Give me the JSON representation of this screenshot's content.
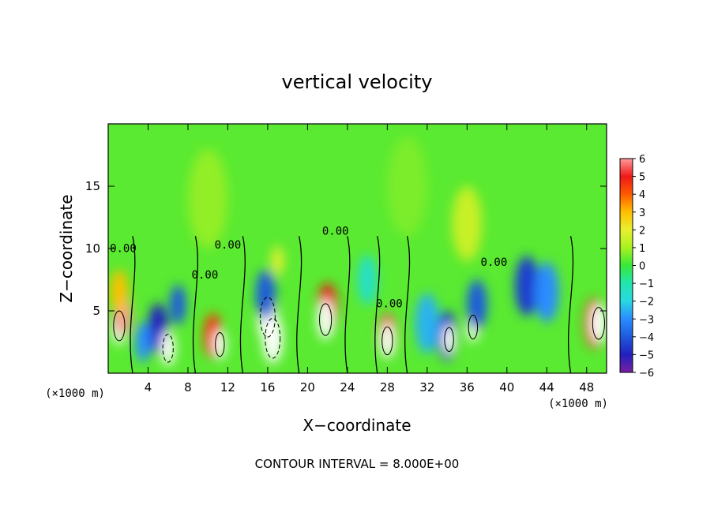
{
  "chart_data": {
    "type": "heatmap",
    "title": "vertical velocity",
    "xlabel": "X−coordinate",
    "ylabel": "Z−coordinate",
    "x_unit_left": "(×1000 m)",
    "x_unit_right": "(×1000 m)",
    "footer": "CONTOUR INTERVAL = 8.000E+00",
    "xlim": [
      0,
      50
    ],
    "ylim": [
      0,
      20
    ],
    "xticks": [
      4,
      8,
      12,
      16,
      20,
      24,
      28,
      32,
      36,
      40,
      44,
      48
    ],
    "xtick_labels": [
      "4",
      "8",
      "12",
      "16",
      "20",
      "24",
      "28",
      "32",
      "36",
      "40",
      "44",
      "48"
    ],
    "yticks": [
      5,
      10,
      15
    ],
    "ytick_labels": [
      "5",
      "10",
      "15"
    ],
    "colorbar": {
      "range": [
        -6,
        6
      ],
      "ticks": [
        6,
        5,
        4,
        3,
        2,
        1,
        0,
        -1,
        -2,
        -3,
        -4,
        -5,
        -6
      ],
      "tick_labels": [
        "6",
        "5",
        "4",
        "3",
        "2",
        "1",
        "0",
        "−1",
        "−2",
        "−3",
        "−4",
        "−5",
        "−6"
      ]
    },
    "contour_labels": [
      {
        "text": "0.00",
        "x": 1.5,
        "z": 9.7
      },
      {
        "text": "0.00",
        "x": 9.7,
        "z": 7.6
      },
      {
        "text": "0.00",
        "x": 12.0,
        "z": 10.0
      },
      {
        "text": "0.00",
        "x": 22.8,
        "z": 11.1
      },
      {
        "text": "0.00",
        "x": 28.2,
        "z": 5.3
      },
      {
        "text": "0.00",
        "x": 38.7,
        "z": 8.6
      }
    ],
    "cells": [
      {
        "x": 1.1,
        "z": 3.8,
        "w": 0.75,
        "value": 8
      },
      {
        "x": 1.4,
        "z": 4.8,
        "w": 0.9,
        "value": 6
      },
      {
        "x": 1.1,
        "z": 6.5,
        "w": 0.9,
        "value": 3
      },
      {
        "x": 5.0,
        "z": 3.6,
        "w": 1.0,
        "value": -5
      },
      {
        "x": 6.0,
        "z": 2.0,
        "w": 0.7,
        "value": -8
      },
      {
        "x": 7.0,
        "z": 5.5,
        "w": 0.8,
        "value": -4
      },
      {
        "x": 3.5,
        "z": 2.5,
        "w": 0.8,
        "value": -3
      },
      {
        "x": 10.5,
        "z": 3.0,
        "w": 0.9,
        "value": 4.5
      },
      {
        "x": 11.2,
        "z": 2.3,
        "w": 0.6,
        "value": 8
      },
      {
        "x": 16.0,
        "z": 4.5,
        "w": 1.0,
        "value": -8
      },
      {
        "x": 16.5,
        "z": 2.8,
        "w": 1.0,
        "value": -8
      },
      {
        "x": 15.8,
        "z": 6.3,
        "w": 1.0,
        "value": -4
      },
      {
        "x": 17.0,
        "z": 9.0,
        "w": 0.6,
        "value": 2
      },
      {
        "x": 22.0,
        "z": 5.2,
        "w": 1.0,
        "value": 5
      },
      {
        "x": 21.8,
        "z": 4.3,
        "w": 0.8,
        "value": 8
      },
      {
        "x": 28.0,
        "z": 3.0,
        "w": 0.9,
        "value": 5.5
      },
      {
        "x": 28.0,
        "z": 2.6,
        "w": 0.7,
        "value": 8
      },
      {
        "x": 26.0,
        "z": 7.5,
        "w": 1.0,
        "value": -1.5
      },
      {
        "x": 34.0,
        "z": 3.0,
        "w": 1.0,
        "value": -4.5
      },
      {
        "x": 34.2,
        "z": 2.7,
        "w": 0.6,
        "value": 8
      },
      {
        "x": 36.6,
        "z": 3.7,
        "w": 0.6,
        "value": 8
      },
      {
        "x": 37.0,
        "z": 5.5,
        "w": 1.0,
        "value": -4
      },
      {
        "x": 32.0,
        "z": 4.0,
        "w": 1.2,
        "value": -2.5
      },
      {
        "x": 42.0,
        "z": 7.0,
        "w": 1.2,
        "value": -4.5
      },
      {
        "x": 44.0,
        "z": 6.5,
        "w": 1.2,
        "value": -3
      },
      {
        "x": 48.8,
        "z": 4.0,
        "w": 1.0,
        "value": 5
      },
      {
        "x": 49.2,
        "z": 4.0,
        "w": 0.8,
        "value": 8
      },
      {
        "x": 36.0,
        "z": 12.0,
        "w": 1.5,
        "value": 1.5
      },
      {
        "x": 10.0,
        "z": 14.0,
        "w": 2.0,
        "value": 0.8
      },
      {
        "x": 30.0,
        "z": 15.0,
        "w": 2.0,
        "value": 0.6
      }
    ]
  }
}
